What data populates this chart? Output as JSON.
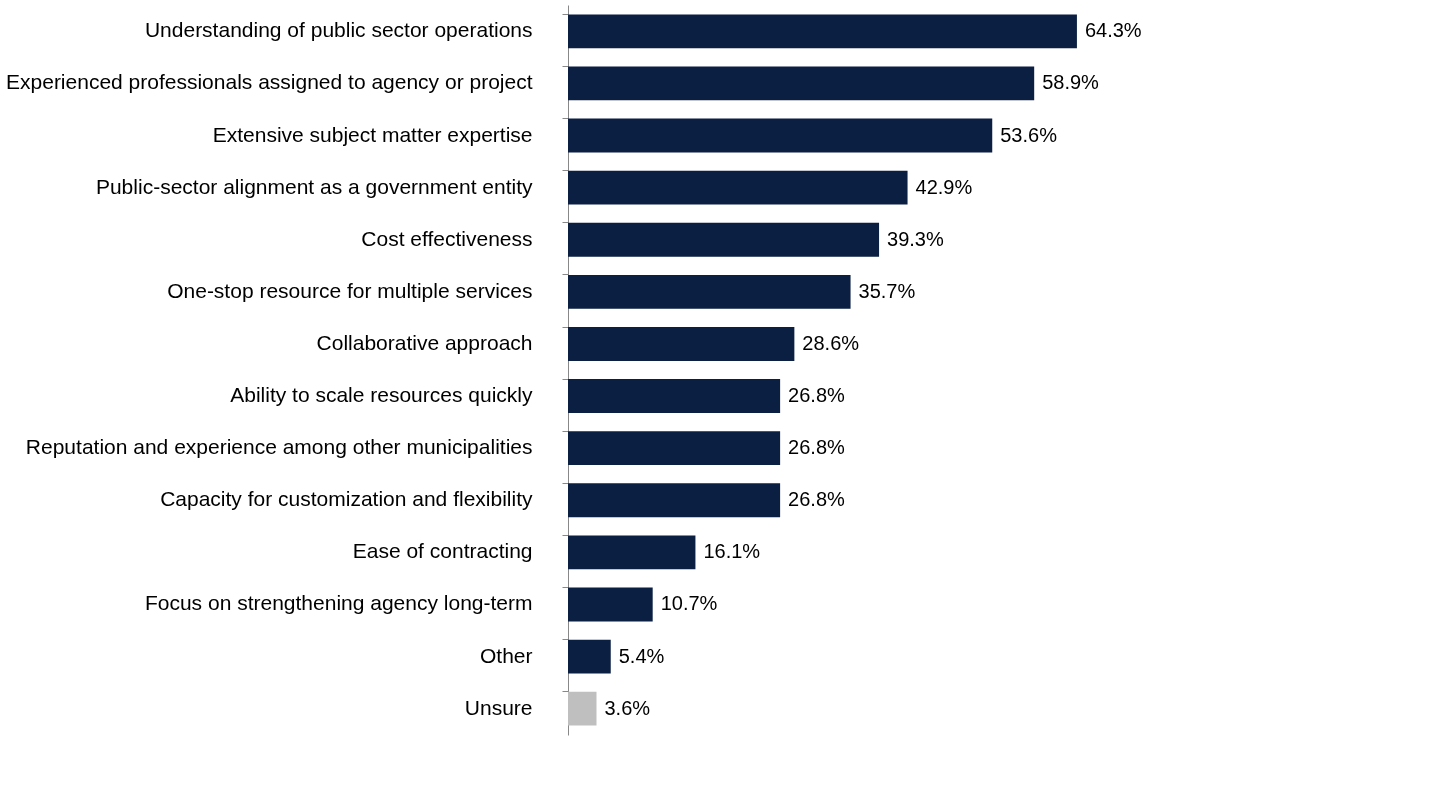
{
  "chart_data": {
    "type": "bar",
    "orientation": "horizontal",
    "categories": [
      "Understanding of public sector operations",
      "Experienced professionals assigned to agency or project",
      "Extensive subject matter expertise",
      "Public-sector alignment as a government entity",
      "Cost effectiveness",
      "One-stop resource for multiple services",
      "Collaborative approach",
      "Ability to scale resources quickly",
      "Reputation and experience among other municipalities",
      "Capacity for customization and flexibility",
      "Ease of contracting",
      "Focus on strengthening agency long-term",
      "Other",
      "Unsure"
    ],
    "values": [
      64.3,
      58.9,
      53.6,
      42.9,
      39.3,
      35.7,
      28.6,
      26.8,
      26.8,
      26.8,
      16.1,
      10.7,
      5.4,
      3.6
    ],
    "value_labels": [
      "64.3%",
      "58.9%",
      "53.6%",
      "42.9%",
      "39.3%",
      "35.7%",
      "28.6%",
      "26.8%",
      "26.8%",
      "26.8%",
      "16.1%",
      "10.7%",
      "5.4%",
      "3.6%"
    ],
    "colors": [
      "#0b1f42",
      "#0b1f42",
      "#0b1f42",
      "#0b1f42",
      "#0b1f42",
      "#0b1f42",
      "#0b1f42",
      "#0b1f42",
      "#0b1f42",
      "#0b1f42",
      "#0b1f42",
      "#0b1f42",
      "#0b1f42",
      "#bfbfbf"
    ],
    "grid": false,
    "legend": false
  }
}
